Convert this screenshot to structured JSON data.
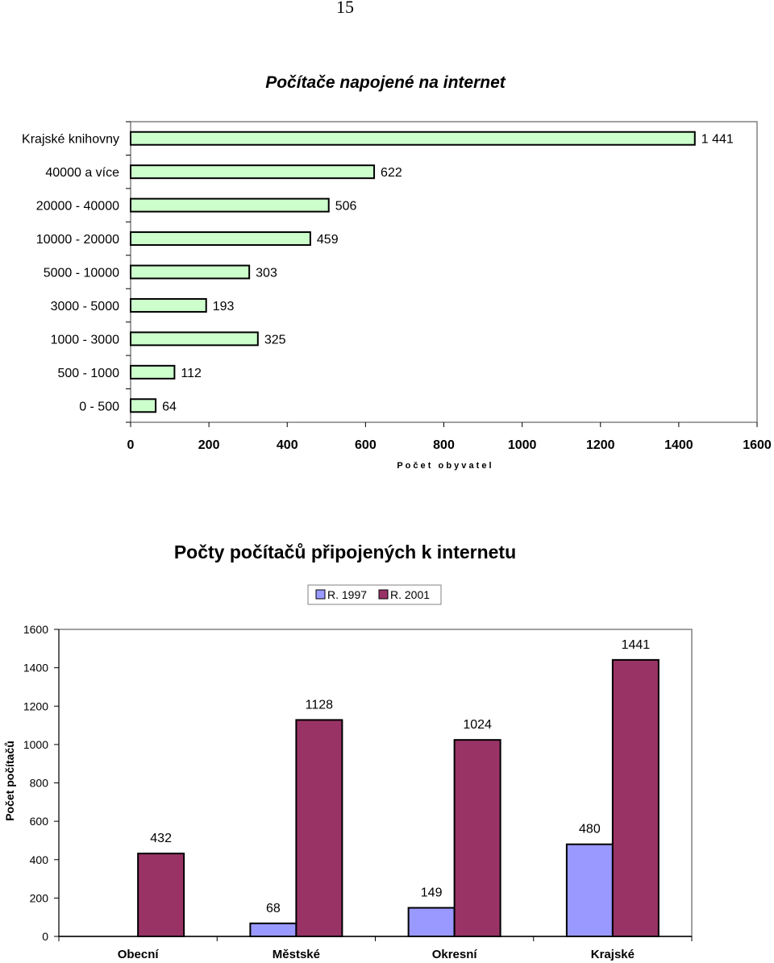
{
  "page_number": "15",
  "chart_data": [
    {
      "type": "bar",
      "orientation": "horizontal",
      "title": "Počítače napojené na internet",
      "xlabel": "P o č e t   o b y v a t e l",
      "ylabel": "",
      "categories": [
        "Krajské knihovny",
        "40000 a více",
        "20000 - 40000",
        "10000 - 20000",
        "5000 - 10000",
        "3000 - 5000",
        "1000 - 3000",
        "500 - 1000",
        "0 - 500"
      ],
      "values": [
        1441,
        622,
        506,
        459,
        303,
        193,
        325,
        112,
        64
      ],
      "value_labels": [
        "1 441",
        "622",
        "506",
        "459",
        "303",
        "193",
        "325",
        "112",
        "64"
      ],
      "xlim": [
        0,
        1600
      ],
      "xticks": [
        "0",
        "200",
        "400",
        "600",
        "800",
        "1000",
        "1200",
        "1400",
        "1600"
      ],
      "bar_color": "#ccffcc",
      "grid": false
    },
    {
      "type": "bar",
      "title": "Počty počítačů připojených k internetu",
      "xlabel": "",
      "ylabel": "Počet počítačů",
      "categories": [
        "Obecní",
        "Městské",
        "Okresní",
        "Krajské"
      ],
      "series": [
        {
          "name": "R. 1997",
          "values": [
            0,
            68,
            149,
            480
          ],
          "labels": [
            "",
            "68",
            "149",
            "480"
          ],
          "color": "#9999ff"
        },
        {
          "name": "R. 2001",
          "values": [
            432,
            1128,
            1024,
            1441
          ],
          "labels": [
            "432",
            "1128",
            "1024",
            "1441"
          ],
          "color": "#993366"
        }
      ],
      "ylim": [
        0,
        1600
      ],
      "yticks": [
        "0",
        "200",
        "400",
        "600",
        "800",
        "1000",
        "1200",
        "1400",
        "1600"
      ],
      "legend_position": "top",
      "grid": false
    }
  ]
}
